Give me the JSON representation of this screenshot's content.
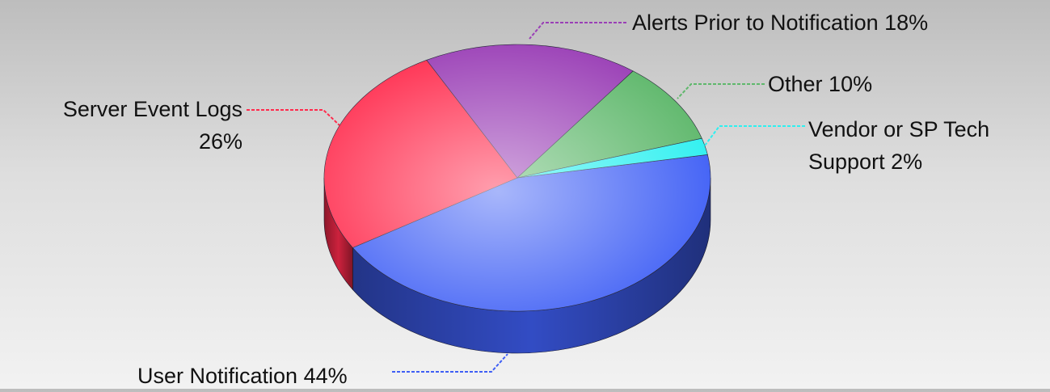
{
  "chart_data": {
    "type": "pie",
    "categories": [
      "User Notification",
      "Server Event Logs",
      "Alerts Prior to Notification",
      "Other",
      "Vendor or SP Tech Support"
    ],
    "values": [
      44,
      26,
      18,
      10,
      2
    ],
    "value_labels": [
      "44%",
      "26%",
      "18%",
      "10%",
      "2%"
    ],
    "colors": [
      "#3f5ff5",
      "#ff2a4c",
      "#9a3fb6",
      "#5fb86c",
      "#2ef0f0"
    ]
  }
}
